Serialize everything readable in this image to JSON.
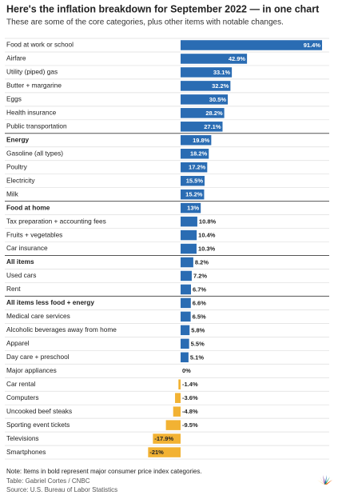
{
  "chart_data": {
    "type": "bar",
    "orientation": "horizontal",
    "title": "Here's the inflation breakdown for September 2022 — in one chart",
    "subtitle": "These are some of the core categories, plus other items with notable changes.",
    "note": "Note: Items in bold represent major consumer price index categories.",
    "credit": "Table: Gabriel Cortes / CNBC",
    "source": "Source: U.S. Bureau of Labor Statistics",
    "categories": [
      "Food at work or school",
      "Airfare",
      "Utility (piped) gas",
      "Butter + margarine",
      "Eggs",
      "Health insurance",
      "Public transportation",
      "Energy",
      "Gasoline (all types)",
      "Poultry",
      "Electricity",
      "Milk",
      "Food at home",
      "Tax preparation + accounting fees",
      "Fruits + vegetables",
      "Car insurance",
      "All items",
      "Used cars",
      "Rent",
      "All items less food + energy",
      "Medical care services",
      "Alcoholic beverages away from home",
      "Apparel",
      "Day care + preschool",
      "Major appliances",
      "Car rental",
      "Computers",
      "Uncooked beef steaks",
      "Sporting event tickets",
      "Televisions",
      "Smartphones"
    ],
    "values": [
      91.4,
      42.9,
      33.1,
      32.2,
      30.5,
      28.2,
      27.1,
      19.8,
      18.2,
      17.2,
      15.5,
      15.2,
      13,
      10.8,
      10.4,
      10.3,
      8.2,
      7.2,
      6.7,
      6.6,
      6.5,
      5.8,
      5.5,
      5.1,
      0,
      -1.4,
      -3.6,
      -4.8,
      -9.5,
      -17.9,
      -21
    ],
    "value_labels": [
      "91.4%",
      "42.9%",
      "33.1%",
      "32.2%",
      "30.5%",
      "28.2%",
      "27.1%",
      "19.8%",
      "18.2%",
      "17.2%",
      "15.5%",
      "15.2%",
      "13%",
      "10.8%",
      "10.4%",
      "10.3%",
      "8.2%",
      "7.2%",
      "6.7%",
      "6.6%",
      "6.5%",
      "5.8%",
      "5.5%",
      "5.1%",
      "0%",
      "-1.4%",
      "-3.6%",
      "-4.8%",
      "-9.5%",
      "-17.9%",
      "-21%"
    ],
    "bold": [
      false,
      false,
      false,
      false,
      false,
      false,
      false,
      true,
      false,
      false,
      false,
      false,
      true,
      false,
      false,
      false,
      true,
      false,
      false,
      true,
      false,
      false,
      false,
      false,
      false,
      false,
      false,
      false,
      false,
      false,
      false
    ],
    "positive_color": "#2a6cb3",
    "negative_color": "#f2b233",
    "xlim": [
      -25,
      95
    ]
  }
}
